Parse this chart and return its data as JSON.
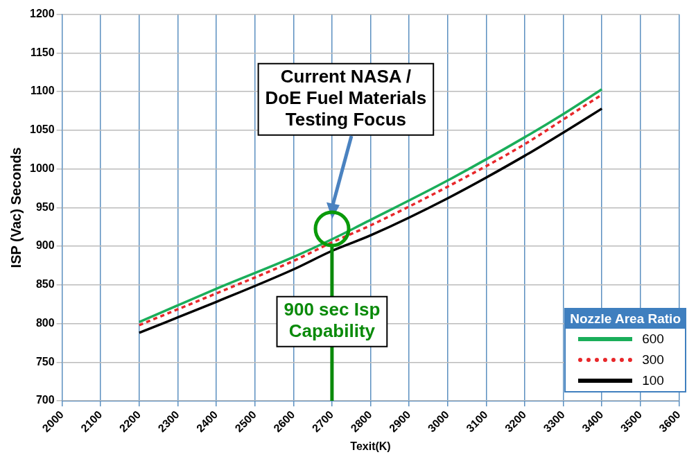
{
  "chart_data": {
    "type": "line",
    "xlabel": "Texit(K)",
    "ylabel": "ISP (Vac) Seconds",
    "legend_title": "Nozzle Area Ratio",
    "legend": "bottom right",
    "grid": true,
    "marker": "none",
    "x": [
      2200,
      2400,
      2600,
      2700,
      2800,
      3000,
      3200,
      3300,
      3400
    ],
    "xlim": [
      2000,
      3600
    ],
    "xticks": [
      2000,
      2100,
      2200,
      2300,
      2400,
      2500,
      2600,
      2700,
      2800,
      2900,
      3000,
      3100,
      3200,
      3300,
      3400,
      3500,
      3600
    ],
    "ylim": [
      700,
      1200
    ],
    "yticks": [
      700,
      750,
      800,
      850,
      900,
      950,
      1000,
      1050,
      1100,
      1150,
      1200
    ],
    "series": [
      {
        "name": "600",
        "color": "#1aae5a",
        "line_style": "solid",
        "values": [
          802,
          845,
          886,
          909,
          934,
          985,
          1041,
          1071,
          1103
        ]
      },
      {
        "name": "300",
        "color": "#e8272a",
        "line_style": "dashed",
        "values": [
          798,
          839,
          881,
          905,
          927,
          977,
          1032,
          1064,
          1096
        ]
      },
      {
        "name": "100",
        "color": "#000000",
        "line_style": "solid",
        "values": [
          788,
          828,
          870,
          894,
          914,
          962,
          1017,
          1047,
          1078
        ]
      }
    ],
    "annotations": [
      "Current NASA / DoE Fuel Materials Testing Focus"
    ],
    "ref_lines": [
      {
        "axis": "x",
        "value": 2700,
        "label": "900 sec Isp Capability",
        "color": "#0a8a0a"
      }
    ]
  }
}
